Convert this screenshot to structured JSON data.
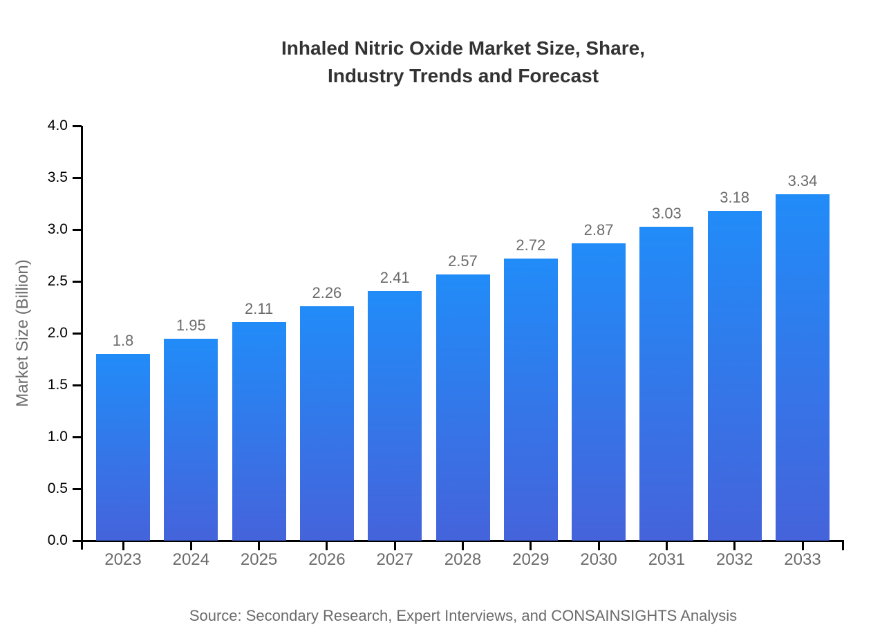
{
  "title": {
    "line1": "Inhaled Nitric Oxide Market Size, Share,",
    "line2": "Industry Trends and Forecast"
  },
  "source": {
    "text": "Source: Secondary Research, Expert Interviews, and CONSAINSIGHTS Analysis"
  },
  "colors": {
    "background": "#ffffff",
    "title": "#333333",
    "axis": "#000000",
    "y_tick_label": "#000000",
    "category_label": "#6b6b6b",
    "value_label": "#6b6b6b",
    "ylabel": "#6e6e6e",
    "source": "#6b6b6b",
    "bar_gradient_top": "#218cf8",
    "bar_gradient_bottom": "#4563db"
  },
  "chart_data": {
    "type": "bar",
    "title": "Inhaled Nitric Oxide Market Size, Share, Industry Trends and Forecast",
    "categories": [
      "2023",
      "2024",
      "2025",
      "2026",
      "2027",
      "2028",
      "2029",
      "2030",
      "2031",
      "2032",
      "2033"
    ],
    "values": [
      1.8,
      1.95,
      2.11,
      2.26,
      2.41,
      2.57,
      2.72,
      2.87,
      3.03,
      3.18,
      3.34
    ],
    "value_labels": [
      "1.8",
      "1.95",
      "2.11",
      "2.26",
      "2.41",
      "2.57",
      "2.72",
      "2.87",
      "3.03",
      "3.18",
      "3.34"
    ],
    "xlabel": "",
    "ylabel": "Market Size (Billion)",
    "ylim": [
      0.0,
      4.0
    ],
    "yticks": [
      "0.0",
      "0.5",
      "1.0",
      "1.5",
      "2.0",
      "2.5",
      "3.0",
      "3.5",
      "4.0"
    ],
    "grid": false,
    "legend_position": "none",
    "bar_gradient_top": "#218cf8",
    "bar_gradient_bottom": "#4563db",
    "source": "Source: Secondary Research, Expert Interviews, and CONSAINSIGHTS Analysis"
  }
}
